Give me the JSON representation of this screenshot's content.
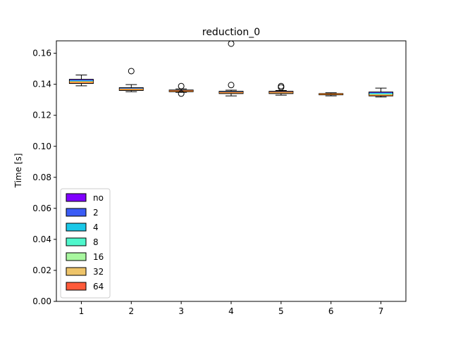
{
  "chart_data": {
    "type": "box",
    "title": "reduction_0",
    "xlabel": "",
    "ylabel": "Time [s]",
    "xlim": [
      0.5,
      7.5
    ],
    "ylim": [
      0.0,
      0.168
    ],
    "yticks": [
      0.0,
      0.02,
      0.04,
      0.06,
      0.08,
      0.1,
      0.12,
      0.14,
      0.16
    ],
    "ytick_labels": [
      "0.00",
      "0.02",
      "0.04",
      "0.06",
      "0.08",
      "0.10",
      "0.12",
      "0.14",
      "0.16"
    ],
    "grid": false,
    "legend_position": "lower-left",
    "categories": [
      "1",
      "2",
      "3",
      "4",
      "5",
      "6",
      "7"
    ],
    "series": [
      {
        "name": "no",
        "color": "#8000ff"
      },
      {
        "name": "2",
        "color": "#3a5cf5"
      },
      {
        "name": "4",
        "color": "#1ac8e8"
      },
      {
        "name": "8",
        "color": "#4ff7cc"
      },
      {
        "name": "16",
        "color": "#a8f79f"
      },
      {
        "name": "32",
        "color": "#eec46a"
      },
      {
        "name": "64",
        "color": "#ff5a3a"
      }
    ],
    "boxes": [
      {
        "x": 1,
        "whislo": 0.139,
        "q1": 0.1405,
        "med": 0.1415,
        "q3": 0.1432,
        "whishi": 0.146,
        "fliers": []
      },
      {
        "x": 2,
        "whislo": 0.1352,
        "q1": 0.136,
        "med": 0.1368,
        "q3": 0.1378,
        "whishi": 0.1398,
        "fliers": [
          0.1485
        ]
      },
      {
        "x": 3,
        "whislo": 0.1348,
        "q1": 0.1352,
        "med": 0.1357,
        "q3": 0.1363,
        "whishi": 0.137,
        "fliers": [
          0.1388,
          0.134
        ]
      },
      {
        "x": 4,
        "whislo": 0.1325,
        "q1": 0.134,
        "med": 0.1347,
        "q3": 0.1355,
        "whishi": 0.1362,
        "fliers": [
          0.1662,
          0.1395
        ]
      },
      {
        "x": 5,
        "whislo": 0.133,
        "q1": 0.134,
        "med": 0.1348,
        "q3": 0.1355,
        "whishi": 0.136,
        "fliers": [
          0.1388,
          0.138
        ]
      },
      {
        "x": 6,
        "whislo": 0.1325,
        "q1": 0.1332,
        "med": 0.1337,
        "q3": 0.134,
        "whishi": 0.1345,
        "fliers": []
      },
      {
        "x": 7,
        "whislo": 0.1318,
        "q1": 0.1325,
        "med": 0.133,
        "q3": 0.135,
        "whishi": 0.1375,
        "fliers": []
      }
    ]
  }
}
